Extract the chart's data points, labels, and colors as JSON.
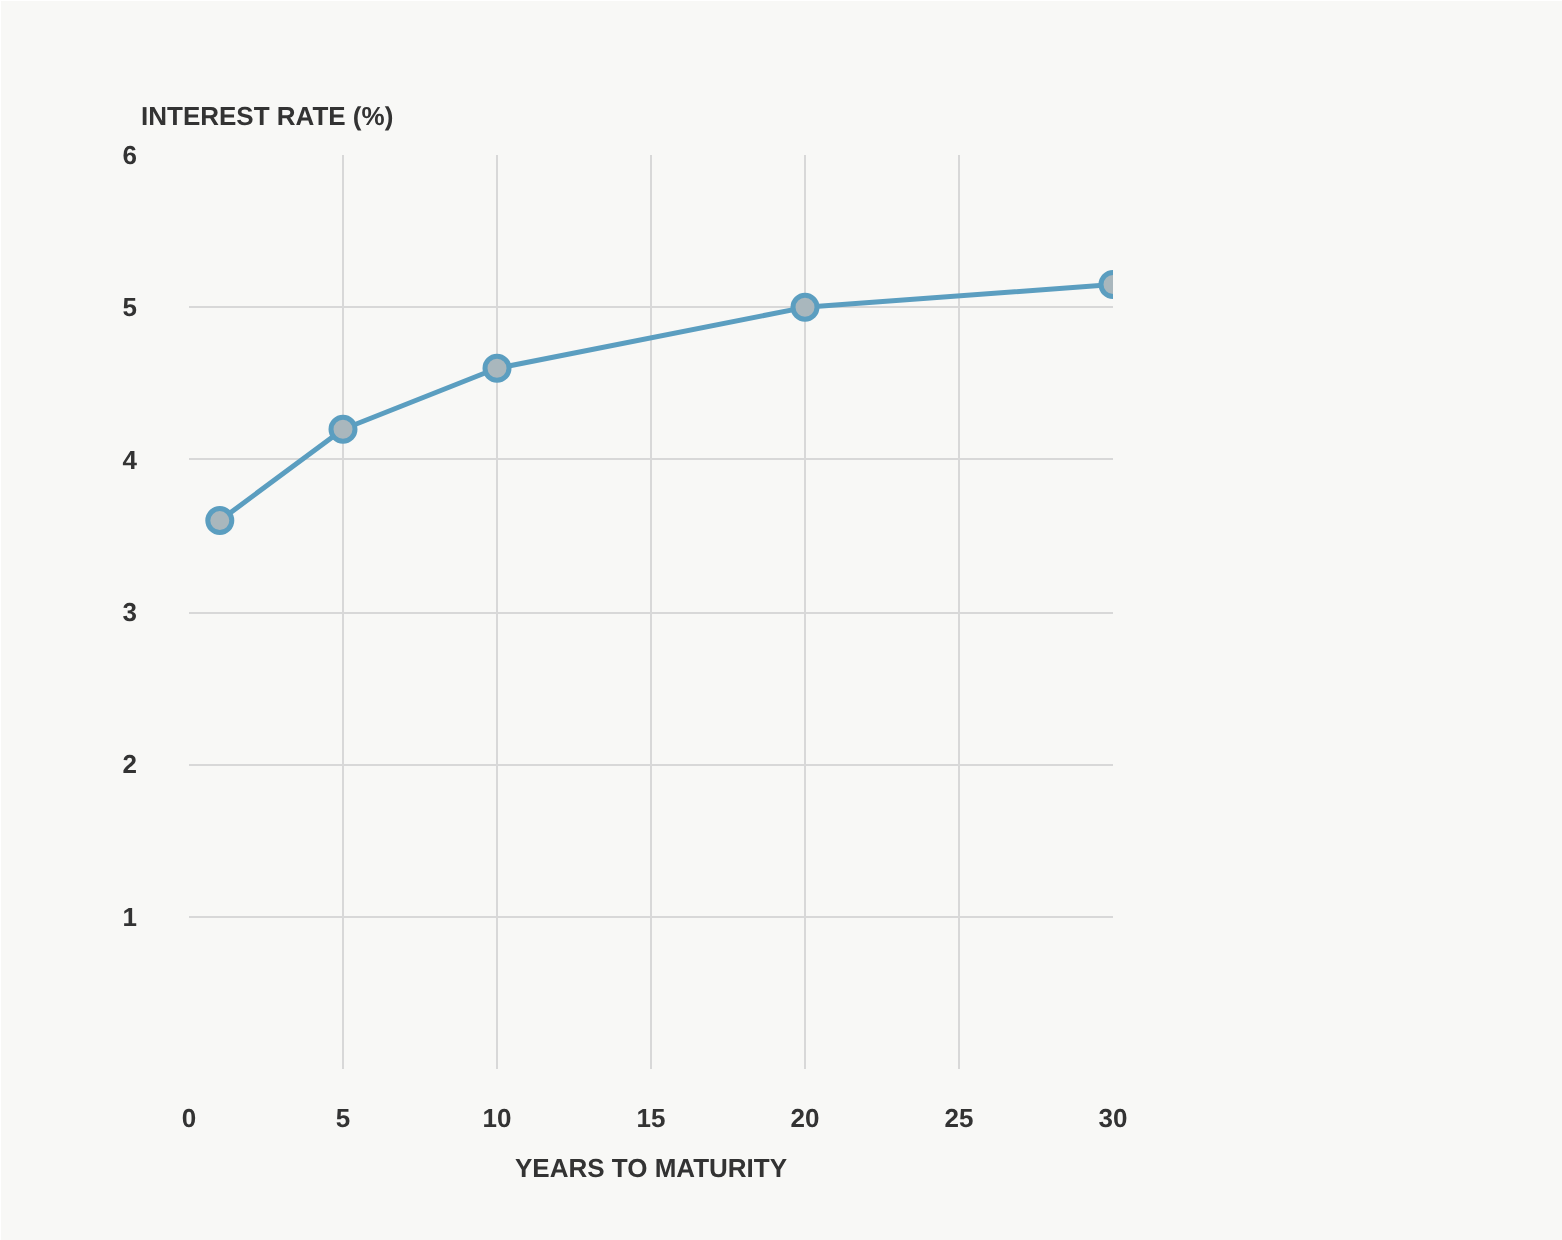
{
  "chart_data": {
    "type": "line",
    "ylabel": "INTEREST RATE (%)",
    "xlabel": "YEARS TO MATURITY",
    "x": [
      1,
      5,
      10,
      20,
      30
    ],
    "series": [
      {
        "color": "#5b9ec0",
        "values": [
          3.6,
          4.2,
          4.6,
          5.0,
          5.15
        ]
      }
    ],
    "xlim": [
      0,
      30
    ],
    "ylim": [
      0,
      6
    ],
    "xticks": [
      0,
      5,
      10,
      15,
      20,
      25,
      30
    ],
    "yticks": [
      {
        "value": 0,
        "label": null
      },
      1,
      2,
      3,
      4,
      5,
      6
    ],
    "grid": true,
    "marker": "circle",
    "line_style": "solid"
  }
}
